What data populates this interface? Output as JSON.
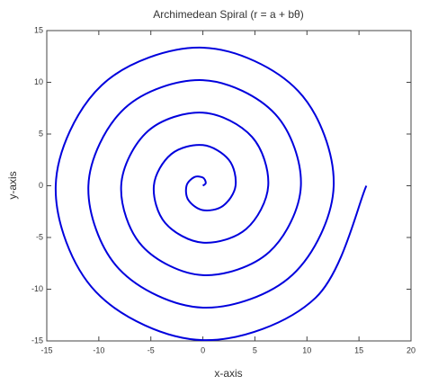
{
  "chart_data": {
    "type": "line",
    "title": "Archimedean Spiral (r = a + bθ)",
    "xlabel": "x-axis",
    "ylabel": "y-axis",
    "color": "#0000dd",
    "xlim": [
      -15,
      20
    ],
    "ylim": [
      -15,
      15
    ],
    "xticks": [
      -15,
      -10,
      -5,
      0,
      5,
      10,
      15,
      20
    ],
    "yticks": [
      -15,
      -10,
      -5,
      0,
      5,
      10,
      15
    ],
    "x": [
      0,
      0.28,
      0,
      -0.83,
      -1.57,
      -1.39,
      0,
      1.94,
      3.14,
      2.5,
      0,
      -3.05,
      -4.71,
      -3.61,
      0,
      4.17,
      6.28,
      4.72,
      0,
      -5.28,
      -7.85,
      -5.83,
      0,
      6.39,
      9.42,
      6.94,
      0,
      -7.5,
      -11.0,
      -8.05,
      0,
      8.61,
      12.57,
      9.16,
      0,
      -9.72,
      -14.14,
      -10.27,
      0,
      10.83,
      15.71
    ],
    "values": [
      0,
      0.28,
      0.79,
      0.83,
      0,
      -1.39,
      -2.36,
      -1.94,
      0,
      2.5,
      3.93,
      3.05,
      0,
      -3.61,
      -5.5,
      -4.17,
      0,
      4.72,
      7.07,
      5.28,
      0,
      -5.83,
      -8.64,
      -6.39,
      0,
      6.94,
      10.21,
      7.5,
      0,
      -8.05,
      -11.78,
      -8.61,
      0,
      9.16,
      13.35,
      9.72,
      0,
      -10.27,
      -14.92,
      -10.83,
      0
    ]
  }
}
